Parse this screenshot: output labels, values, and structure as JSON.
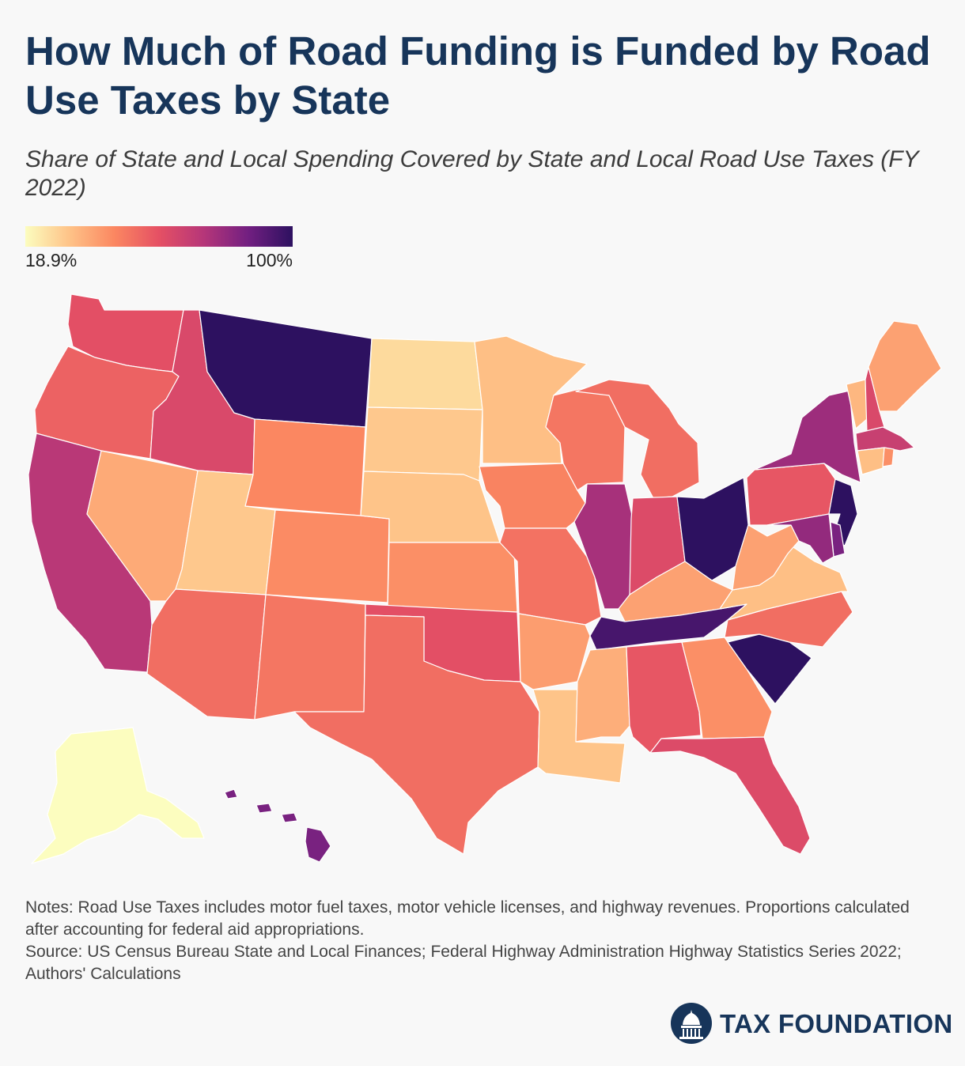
{
  "title": "How Much of Road Funding is Funded by Road Use Taxes by State",
  "subtitle": "Share of State and Local Spending Covered by State and Local Road Use Taxes (FY 2022)",
  "legend": {
    "min_label": "18.9%",
    "max_label": "100%",
    "min": 18.9,
    "max": 100,
    "colors": [
      "#fcfdbf",
      "#fec287",
      "#fb8761",
      "#e55064",
      "#b63679",
      "#721f81",
      "#2d1160"
    ]
  },
  "notes": {
    "line1": "Notes: Road Use Taxes includes motor fuel taxes, motor vehicle licenses, and highway revenues. Proportions calculated after accounting for federal aid appropriations.",
    "line2": "Source: US Census Bureau State and Local Finances; Federal Highway Administration Highway Statistics Series 2022; Authors' Calculations"
  },
  "logo": {
    "text": "TAX FOUNDATION",
    "icon": "capitol-dome-icon"
  },
  "map_data": {
    "type": "choropleth",
    "states": [
      {
        "id": "WA",
        "value": 60
      },
      {
        "id": "OR",
        "value": 55
      },
      {
        "id": "CA",
        "value": 72
      },
      {
        "id": "ID",
        "value": 63
      },
      {
        "id": "NV",
        "value": 38
      },
      {
        "id": "MT",
        "value": 100
      },
      {
        "id": "WY",
        "value": 46
      },
      {
        "id": "UT",
        "value": 31
      },
      {
        "id": "AZ",
        "value": 52
      },
      {
        "id": "CO",
        "value": 45
      },
      {
        "id": "NM",
        "value": 50
      },
      {
        "id": "ND",
        "value": 27
      },
      {
        "id": "SD",
        "value": 31
      },
      {
        "id": "NE",
        "value": 32
      },
      {
        "id": "KS",
        "value": 44
      },
      {
        "id": "OK",
        "value": 60
      },
      {
        "id": "TX",
        "value": 52
      },
      {
        "id": "MN",
        "value": 33
      },
      {
        "id": "IA",
        "value": 47
      },
      {
        "id": "MO",
        "value": 51
      },
      {
        "id": "AR",
        "value": 41
      },
      {
        "id": "LA",
        "value": 32
      },
      {
        "id": "WI",
        "value": 50
      },
      {
        "id": "IL",
        "value": 76
      },
      {
        "id": "MI",
        "value": 52
      },
      {
        "id": "IN",
        "value": 62
      },
      {
        "id": "OH",
        "value": 100
      },
      {
        "id": "KY",
        "value": 40
      },
      {
        "id": "TN",
        "value": 95
      },
      {
        "id": "MS",
        "value": 37
      },
      {
        "id": "AL",
        "value": 58
      },
      {
        "id": "GA",
        "value": 44
      },
      {
        "id": "FL",
        "value": 62
      },
      {
        "id": "SC",
        "value": 100
      },
      {
        "id": "NC",
        "value": 52
      },
      {
        "id": "VA",
        "value": 33
      },
      {
        "id": "WV",
        "value": 40
      },
      {
        "id": "PA",
        "value": 58
      },
      {
        "id": "NY",
        "value": 78
      },
      {
        "id": "VT",
        "value": 35
      },
      {
        "id": "NH",
        "value": 63
      },
      {
        "id": "ME",
        "value": 40
      },
      {
        "id": "MA",
        "value": 68
      },
      {
        "id": "CT",
        "value": 33
      },
      {
        "id": "RI",
        "value": 44
      },
      {
        "id": "NJ",
        "value": 100
      },
      {
        "id": "DE",
        "value": 85
      },
      {
        "id": "MD",
        "value": 80
      },
      {
        "id": "AK",
        "value": 18.9
      },
      {
        "id": "HI",
        "value": 85
      }
    ]
  }
}
